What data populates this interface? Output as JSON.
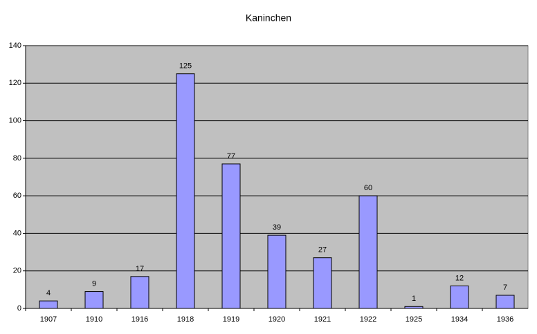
{
  "chart_data": {
    "type": "bar",
    "title": "Kaninchen",
    "categories": [
      "1907",
      "1910",
      "1916",
      "1918",
      "1919",
      "1920",
      "1921",
      "1922",
      "1925",
      "1934",
      "1936"
    ],
    "values": [
      4,
      9,
      17,
      125,
      77,
      39,
      27,
      60,
      1,
      12,
      7
    ],
    "color": "#9999ff",
    "ylim": [
      0,
      140
    ],
    "yticks": [
      0,
      20,
      40,
      60,
      80,
      100,
      120,
      140
    ],
    "grid": true
  }
}
